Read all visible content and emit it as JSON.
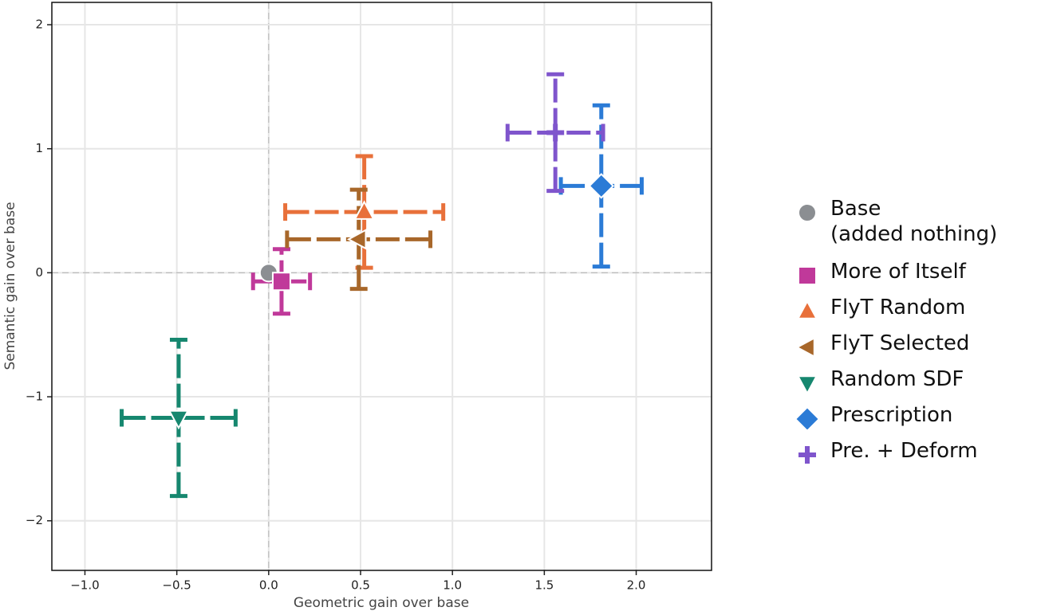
{
  "chart_data": {
    "type": "scatter",
    "x_label": "Geometric gain over base",
    "y_label": "Semantic gain over base",
    "xlim": [
      -1.18,
      2.41
    ],
    "ylim": [
      -2.4,
      2.18
    ],
    "xticks": [
      {
        "value": -1.0,
        "label": "−1.0"
      },
      {
        "value": -0.5,
        "label": "−0.5"
      },
      {
        "value": 0,
        "label": "0.0"
      },
      0.5,
      {
        "value": 1.0,
        "label": "1.0"
      },
      1.5,
      {
        "value": 2.0,
        "label": "2.0"
      }
    ],
    "yticks": [
      {
        "value": -2,
        "label": "−2"
      },
      {
        "value": -1,
        "label": "−1"
      },
      0,
      1,
      2
    ],
    "grid": true,
    "series": [
      {
        "name": "Base\n(added nothing)",
        "color": "#8b8e92",
        "marker": "circle",
        "x": [
          0
        ],
        "values": [
          0
        ]
      },
      {
        "name": "More of Itself",
        "color": "#c0399a",
        "marker": "square",
        "x": [
          0.07
        ],
        "values": [
          -0.07
        ],
        "xerr": [
          0.155
        ],
        "yerr": [
          0.26
        ]
      },
      {
        "name": "FlyT Random",
        "color": "#e8703a",
        "marker": "triangle-up",
        "x": [
          0.52
        ],
        "values": [
          0.49
        ],
        "xerr": [
          0.43
        ],
        "yerr": [
          0.45
        ]
      },
      {
        "name": "FlyT Selected",
        "color": "#a8672a",
        "marker": "triangle-left",
        "x": [
          0.49
        ],
        "values": [
          0.27
        ],
        "xerr": [
          0.39
        ],
        "yerr": [
          0.4
        ]
      },
      {
        "name": "Random SDF",
        "color": "#16876f",
        "marker": "triangle-down",
        "x": [
          -0.49
        ],
        "values": [
          -1.17
        ],
        "xerr": [
          0.31
        ],
        "yerr": [
          0.63
        ]
      },
      {
        "name": "Prescription",
        "color": "#2b7bd6",
        "marker": "diamond",
        "x": [
          1.81
        ],
        "values": [
          0.7
        ],
        "xerr": [
          0.22
        ],
        "yerr": [
          0.65
        ]
      },
      {
        "name": "Pre. + Deform",
        "color": "#7f55cc",
        "marker": "plus",
        "x": [
          1.56
        ],
        "values": [
          1.13
        ],
        "xerr": [
          0.26
        ],
        "yerr": [
          0.47
        ]
      }
    ]
  }
}
